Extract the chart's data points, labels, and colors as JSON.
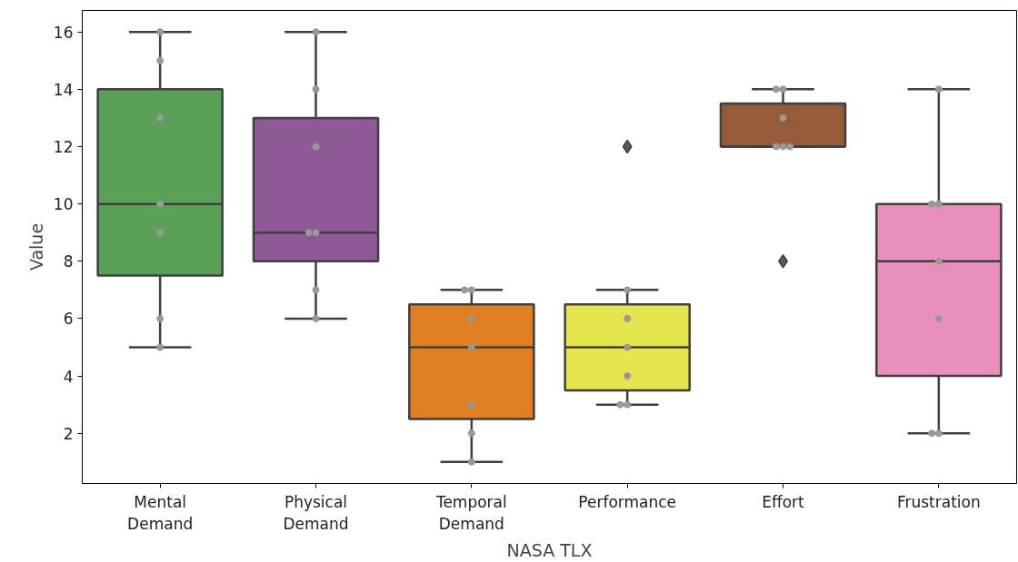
{
  "chart_data": {
    "type": "box",
    "xlabel": "NASA TLX",
    "ylabel": "Value",
    "categories": [
      "Mental\nDemand",
      "Physical\nDemand",
      "Temporal\nDemand",
      "Performance",
      "Effort",
      "Frustration"
    ],
    "ylim": [
      0.25,
      16.75
    ],
    "yticks": [
      2,
      4,
      6,
      8,
      10,
      12,
      14,
      16
    ],
    "grid": false,
    "series": [
      {
        "colors": [
          "#5aa157",
          "#8f5897",
          "#e07f21",
          "#e5e64f",
          "#955a38",
          "#e88fbd"
        ],
        "boxes": [
          {
            "low": 5,
            "q1": 7.5,
            "median": 10,
            "q3": 14,
            "high": 16
          },
          {
            "low": 6,
            "q1": 8,
            "median": 9,
            "q3": 13,
            "high": 16
          },
          {
            "low": 1,
            "q1": 2.5,
            "median": 5,
            "q3": 6.5,
            "high": 7
          },
          {
            "low": 3,
            "q1": 3.5,
            "median": 5,
            "q3": 6.5,
            "high": 7,
            "outliers": [
              12
            ]
          },
          {
            "low": 12,
            "q1": 12,
            "median": 12,
            "q3": 13.5,
            "high": 14,
            "outliers": [
              8
            ]
          },
          {
            "low": 2,
            "q1": 4,
            "median": 8,
            "q3": 10,
            "high": 14
          }
        ]
      },
      {
        "type": "scatter",
        "color": "#999999",
        "marker": "circle",
        "x": [
          "Mental\nDemand",
          "Mental\nDemand",
          "Mental\nDemand",
          "Mental\nDemand",
          "Mental\nDemand",
          "Mental\nDemand",
          "Mental\nDemand",
          "Physical\nDemand",
          "Physical\nDemand",
          "Physical\nDemand",
          "Physical\nDemand",
          "Physical\nDemand",
          "Physical\nDemand",
          "Physical\nDemand",
          "Temporal\nDemand",
          "Temporal\nDemand",
          "Temporal\nDemand",
          "Temporal\nDemand",
          "Temporal\nDemand",
          "Temporal\nDemand",
          "Temporal\nDemand",
          "Performance",
          "Performance",
          "Performance",
          "Performance",
          "Performance",
          "Performance",
          "Performance",
          "Effort",
          "Effort",
          "Effort",
          "Effort",
          "Effort",
          "Effort",
          "Effort",
          "Frustration",
          "Frustration",
          "Frustration",
          "Frustration",
          "Frustration",
          "Frustration",
          "Frustration"
        ],
        "values": [
          16,
          15,
          13,
          10,
          9,
          6,
          5,
          16,
          14,
          12,
          9,
          9,
          7,
          6,
          7,
          7,
          6,
          5,
          3,
          2,
          1,
          null,
          7,
          6,
          5,
          4,
          3,
          3,
          14,
          14,
          13,
          12,
          12,
          12,
          null,
          14,
          10,
          10,
          8,
          6,
          2,
          2
        ]
      }
    ]
  }
}
